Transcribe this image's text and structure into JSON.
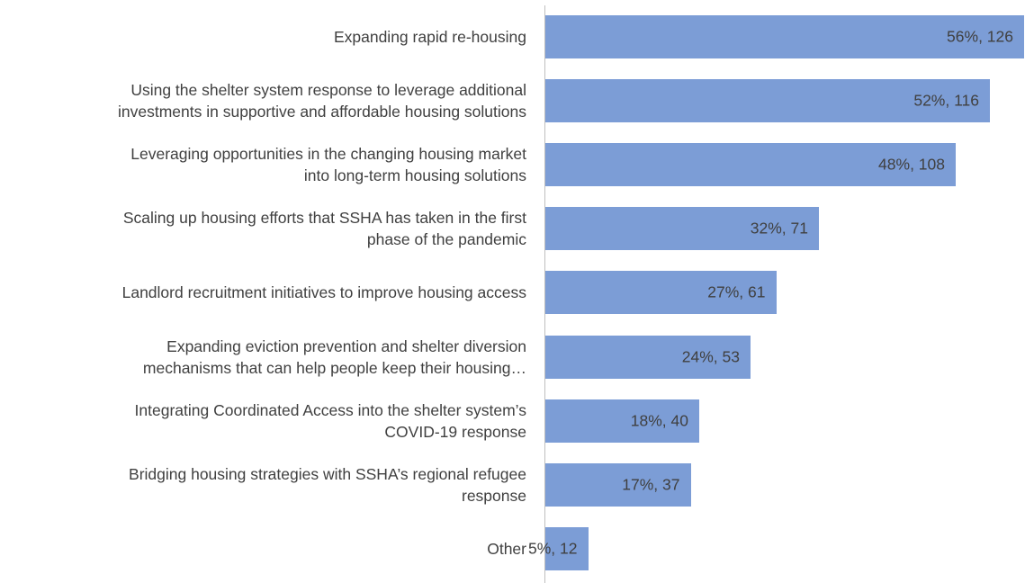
{
  "chart_data": {
    "type": "bar",
    "orientation": "horizontal",
    "color": "#7c9dd6",
    "categories": [
      "Expanding rapid re-housing",
      "Using the shelter system response to leverage additional\ninvestments in supportive and affordable housing solutions",
      "Leveraging opportunities in the changing housing market\ninto long-term housing solutions",
      "Scaling up housing efforts that SSHA has taken in the first\nphase of the pandemic",
      "Landlord recruitment initiatives to improve housing access",
      "Expanding eviction prevention and shelter diversion\nmechanisms that can help people keep their housing…",
      "Integrating Coordinated Access into the shelter system’s\nCOVID-19 response",
      "Bridging housing strategies with SSHA’s regional refugee\nresponse",
      "Other"
    ],
    "values": [
      56,
      52,
      48,
      32,
      27,
      24,
      18,
      17,
      5
    ],
    "value_labels": [
      "56%, 126",
      "52%, 116",
      "48%, 108",
      "32%, 71",
      "27%, 61",
      "24%, 53",
      "18%, 40",
      "17%, 37",
      "5%, 12"
    ]
  }
}
